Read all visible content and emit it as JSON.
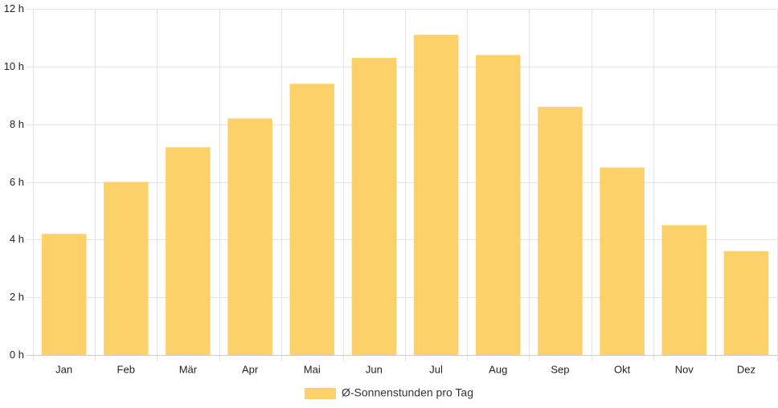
{
  "chart_data": {
    "type": "bar",
    "title": "",
    "xlabel": "",
    "ylabel": "",
    "categories": [
      "Jan",
      "Feb",
      "Mär",
      "Apr",
      "Mai",
      "Jun",
      "Jul",
      "Aug",
      "Sep",
      "Okt",
      "Nov",
      "Dez"
    ],
    "series": [
      {
        "name": "Ø-Sonnenstunden pro Tag",
        "values": [
          4.2,
          6.0,
          7.2,
          8.2,
          9.4,
          10.3,
          11.1,
          10.4,
          8.6,
          6.5,
          4.5,
          3.6
        ]
      }
    ],
    "ylim": [
      0,
      12
    ],
    "yticks": [
      0,
      2,
      4,
      6,
      8,
      10,
      12
    ],
    "ytick_labels": [
      "0 h",
      "2 h",
      "4 h",
      "6 h",
      "8 h",
      "10 h",
      "12 h"
    ],
    "grid": true,
    "legend_position": "bottom",
    "colors": {
      "bar": "#fdd169",
      "grid": "#e4e4e4",
      "axis": "#cccccc"
    }
  }
}
